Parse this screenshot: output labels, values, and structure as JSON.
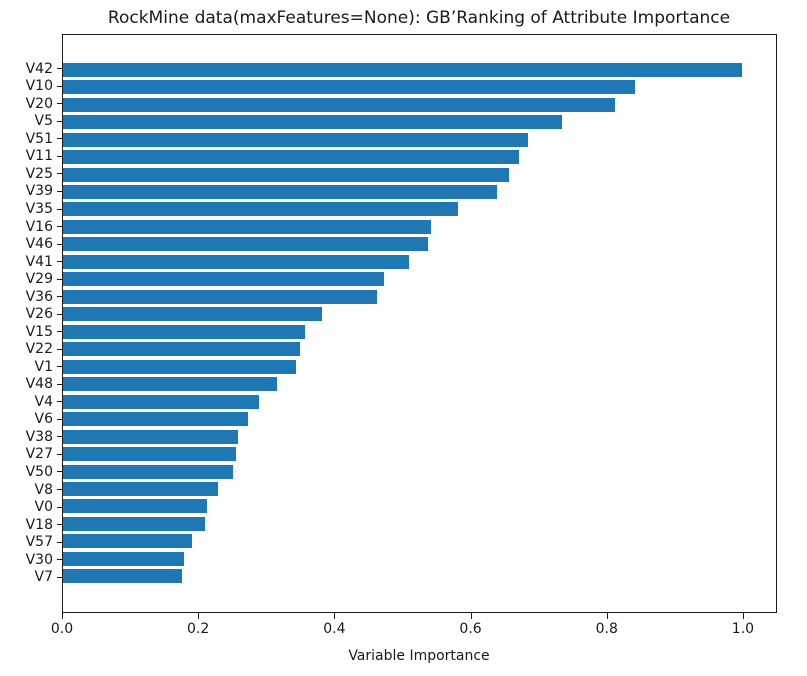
{
  "chart_data": {
    "type": "bar",
    "orientation": "horizontal",
    "title": "RockMine data(maxFeatures=None): GB’Ranking of Attribute Importance",
    "xlabel": "Variable Importance",
    "ylabel": "",
    "categories": [
      "V42",
      "V10",
      "V20",
      "V5",
      "V51",
      "V11",
      "V25",
      "V39",
      "V35",
      "V16",
      "V46",
      "V41",
      "V29",
      "V36",
      "V26",
      "V15",
      "V22",
      "V1",
      "V48",
      "V4",
      "V6",
      "V38",
      "V27",
      "V50",
      "V8",
      "V0",
      "V18",
      "V57",
      "V30",
      "V7"
    ],
    "values": [
      1.0,
      0.843,
      0.813,
      0.735,
      0.685,
      0.672,
      0.657,
      0.639,
      0.582,
      0.542,
      0.538,
      0.51,
      0.472,
      0.462,
      0.382,
      0.356,
      0.349,
      0.343,
      0.315,
      0.288,
      0.273,
      0.258,
      0.255,
      0.25,
      0.228,
      0.212,
      0.209,
      0.19,
      0.178,
      0.175
    ],
    "xticks": [
      0.0,
      0.2,
      0.4,
      0.6,
      0.8,
      1.0
    ],
    "xtick_labels": [
      "0.0",
      "0.2",
      "0.4",
      "0.6",
      "0.8",
      "1.0"
    ],
    "xlim": [
      0,
      1.05
    ],
    "grid": false,
    "legend_position": "none",
    "bar_color": "#1f77b4",
    "spine_color": "#1a1a1a",
    "background_color": "#ffffff"
  }
}
